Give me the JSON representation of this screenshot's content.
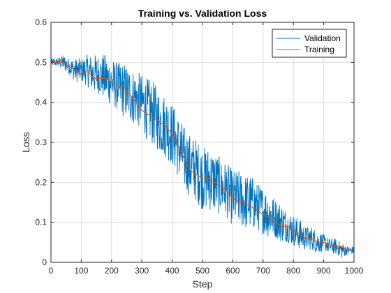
{
  "chart_data": {
    "type": "line",
    "title": "Training vs. Validation Loss",
    "xlabel": "Step",
    "ylabel": "Loss",
    "xlim": [
      0,
      1000
    ],
    "ylim": [
      0,
      0.6
    ],
    "xticks": [
      0,
      100,
      200,
      300,
      400,
      500,
      600,
      700,
      800,
      900,
      1000
    ],
    "yticks": [
      0,
      0.1,
      0.2,
      0.3,
      0.4,
      0.5,
      0.6
    ],
    "xtick_labels": [
      "0",
      "100",
      "200",
      "300",
      "400",
      "500",
      "600",
      "700",
      "800",
      "900",
      "1000"
    ],
    "ytick_labels": [
      "0",
      "0.1",
      "0.2",
      "0.3",
      "0.4",
      "0.5",
      "0.6"
    ],
    "grid": true,
    "legend_position": "top-right",
    "series": [
      {
        "name": "Validation",
        "color": "#0072BD",
        "x": [
          0,
          20,
          40,
          60,
          80,
          100,
          120,
          140,
          160,
          180,
          200,
          220,
          240,
          260,
          280,
          300,
          320,
          340,
          360,
          380,
          400,
          420,
          440,
          460,
          480,
          500,
          520,
          540,
          560,
          580,
          600,
          620,
          640,
          660,
          680,
          700,
          720,
          740,
          760,
          780,
          800,
          820,
          840,
          860,
          880,
          900,
          920,
          940,
          960,
          980,
          1000
        ],
        "y": [
          0.5,
          0.5,
          0.5,
          0.49,
          0.48,
          0.48,
          0.48,
          0.47,
          0.47,
          0.46,
          0.45,
          0.44,
          0.43,
          0.42,
          0.41,
          0.4,
          0.38,
          0.37,
          0.35,
          0.34,
          0.32,
          0.29,
          0.26,
          0.24,
          0.23,
          0.21,
          0.21,
          0.2,
          0.19,
          0.18,
          0.16,
          0.16,
          0.15,
          0.15,
          0.14,
          0.13,
          0.12,
          0.11,
          0.1,
          0.09,
          0.08,
          0.07,
          0.06,
          0.06,
          0.05,
          0.05,
          0.04,
          0.04,
          0.03,
          0.03,
          0.03
        ],
        "noise_band": [
          0.01,
          0.01,
          0.02,
          0.02,
          0.03,
          0.03,
          0.04,
          0.05,
          0.05,
          0.06,
          0.06,
          0.06,
          0.07,
          0.07,
          0.07,
          0.07,
          0.08,
          0.08,
          0.08,
          0.08,
          0.08,
          0.08,
          0.08,
          0.08,
          0.08,
          0.08,
          0.08,
          0.08,
          0.07,
          0.07,
          0.07,
          0.07,
          0.07,
          0.07,
          0.06,
          0.06,
          0.06,
          0.05,
          0.05,
          0.04,
          0.04,
          0.04,
          0.03,
          0.03,
          0.03,
          0.02,
          0.02,
          0.02,
          0.02,
          0.01,
          0.01
        ]
      },
      {
        "name": "Training",
        "color": "#D95319",
        "x": [
          0,
          20,
          40,
          60,
          80,
          100,
          120,
          140,
          160,
          180,
          200,
          220,
          240,
          260,
          280,
          300,
          320,
          340,
          360,
          380,
          400,
          420,
          440,
          460,
          480,
          500,
          520,
          540,
          560,
          580,
          600,
          620,
          640,
          660,
          680,
          700,
          720,
          740,
          760,
          780,
          800,
          820,
          840,
          860,
          880,
          900,
          920,
          940,
          960,
          980,
          1000
        ],
        "y": [
          0.5,
          0.5,
          0.5,
          0.49,
          0.48,
          0.47,
          0.48,
          0.46,
          0.46,
          0.46,
          0.45,
          0.44,
          0.43,
          0.42,
          0.4,
          0.38,
          0.37,
          0.36,
          0.35,
          0.34,
          0.32,
          0.29,
          0.26,
          0.23,
          0.22,
          0.21,
          0.21,
          0.2,
          0.19,
          0.18,
          0.16,
          0.15,
          0.15,
          0.14,
          0.13,
          0.12,
          0.11,
          0.1,
          0.09,
          0.09,
          0.08,
          0.07,
          0.06,
          0.06,
          0.05,
          0.05,
          0.04,
          0.04,
          0.04,
          0.03,
          0.03
        ]
      }
    ]
  }
}
